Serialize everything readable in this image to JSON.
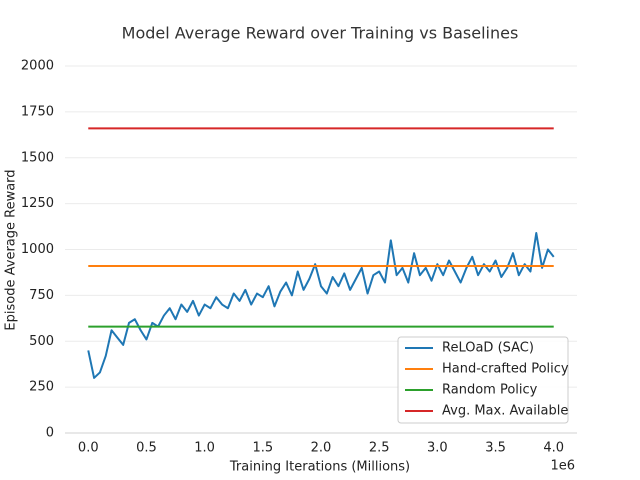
{
  "chart_data": {
    "type": "line",
    "title": "Model Average Reward over Training vs Baselines",
    "xlabel": "Training Iterations (Millions)",
    "ylabel": "Episode Average Reward",
    "x_offset_label": "1e6",
    "xlim": [
      -200000,
      4200000
    ],
    "ylim": [
      0,
      2000
    ],
    "xticks": [
      {
        "value": 0,
        "label": "0.0"
      },
      {
        "value": 500000,
        "label": "0.5"
      },
      {
        "value": 1000000,
        "label": "1.0"
      },
      {
        "value": 1500000,
        "label": "1.5"
      },
      {
        "value": 2000000,
        "label": "2.0"
      },
      {
        "value": 2500000,
        "label": "2.5"
      },
      {
        "value": 3000000,
        "label": "3.0"
      },
      {
        "value": 3500000,
        "label": "3.5"
      },
      {
        "value": 4000000,
        "label": "4.0"
      }
    ],
    "yticks": [
      0,
      250,
      500,
      750,
      1000,
      1250,
      1500,
      1750,
      2000
    ],
    "grid": true,
    "legend": "lower right",
    "series": [
      {
        "name": "ReLOaD (SAC)",
        "color": "#1f77b4",
        "x": [
          0,
          50000,
          100000,
          150000,
          200000,
          250000,
          300000,
          350000,
          400000,
          450000,
          500000,
          550000,
          600000,
          650000,
          700000,
          750000,
          800000,
          850000,
          900000,
          950000,
          1000000,
          1050000,
          1100000,
          1150000,
          1200000,
          1250000,
          1300000,
          1350000,
          1400000,
          1450000,
          1500000,
          1550000,
          1600000,
          1650000,
          1700000,
          1750000,
          1800000,
          1850000,
          1900000,
          1950000,
          2000000,
          2050000,
          2100000,
          2150000,
          2200000,
          2250000,
          2300000,
          2350000,
          2400000,
          2450000,
          2500000,
          2550000,
          2600000,
          2650000,
          2700000,
          2750000,
          2800000,
          2850000,
          2900000,
          2950000,
          3000000,
          3050000,
          3100000,
          3150000,
          3200000,
          3250000,
          3300000,
          3350000,
          3400000,
          3450000,
          3500000,
          3550000,
          3600000,
          3650000,
          3700000,
          3750000,
          3800000,
          3850000,
          3900000,
          3950000,
          4000000
        ],
        "values": [
          450,
          300,
          330,
          420,
          560,
          520,
          480,
          600,
          620,
          560,
          510,
          600,
          580,
          640,
          680,
          620,
          700,
          660,
          720,
          640,
          700,
          680,
          740,
          700,
          680,
          760,
          720,
          780,
          700,
          760,
          740,
          800,
          690,
          770,
          820,
          750,
          880,
          780,
          840,
          920,
          800,
          760,
          850,
          800,
          870,
          780,
          840,
          900,
          760,
          860,
          880,
          820,
          1050,
          860,
          900,
          820,
          980,
          860,
          900,
          830,
          920,
          860,
          940,
          880,
          820,
          900,
          960,
          860,
          920,
          880,
          940,
          850,
          900,
          980,
          860,
          920,
          880,
          1090,
          900,
          1000,
          960
        ]
      },
      {
        "name": "Hand-crafted Policy",
        "color": "#ff7f0e",
        "x": [
          0,
          4000000
        ],
        "values": [
          910,
          910
        ]
      },
      {
        "name": "Random Policy",
        "color": "#2ca02c",
        "x": [
          0,
          4000000
        ],
        "values": [
          580,
          580
        ]
      },
      {
        "name": "Avg. Max. Available",
        "color": "#d62728",
        "x": [
          0,
          4000000
        ],
        "values": [
          1660,
          1660
        ]
      }
    ]
  }
}
